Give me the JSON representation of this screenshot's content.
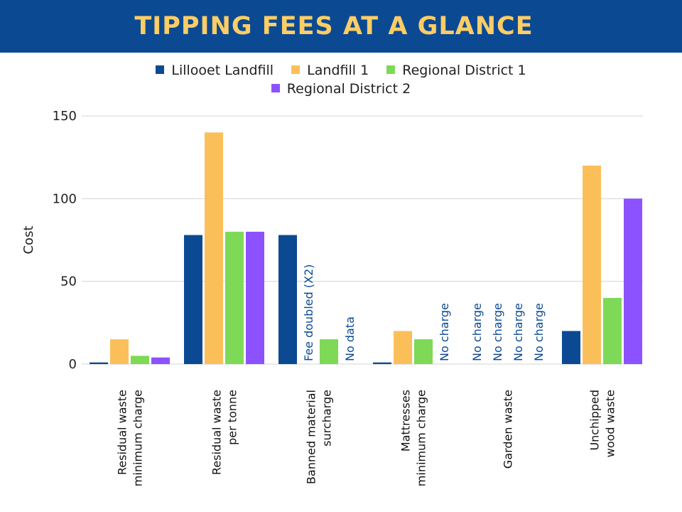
{
  "header": {
    "title": "TIPPING FEES AT A GLANCE"
  },
  "colors": {
    "header_bg": "#0b4a93",
    "title": "#fdcd66",
    "annotation": "#0b4a93"
  },
  "chart_data": {
    "type": "bar",
    "title": "",
    "xlabel": "",
    "ylabel": "Cost",
    "ylim": [
      0,
      150
    ],
    "yticks": [
      0,
      50,
      100,
      150
    ],
    "grid": true,
    "legend_position": "top",
    "categories": [
      [
        "Residual waste",
        "minimum charge"
      ],
      [
        "Residual waste",
        "per tonne"
      ],
      [
        "Banned material",
        "surcharge"
      ],
      [
        "Mattresses",
        "minimum charge"
      ],
      [
        "Garden waste"
      ],
      [
        "Unchipped",
        "wood waste"
      ]
    ],
    "series": [
      {
        "name": "Lillooet Landfill",
        "color": "#0b4a93",
        "values": [
          1,
          78,
          78,
          1,
          null,
          20
        ],
        "labels": [
          null,
          null,
          null,
          null,
          "No charge",
          null
        ]
      },
      {
        "name": "Landfill 1",
        "color": "#fbbf5a",
        "values": [
          15,
          140,
          null,
          20,
          null,
          120
        ],
        "labels": [
          null,
          null,
          "Fee doubled (X2)",
          null,
          "No charge",
          null
        ]
      },
      {
        "name": "Regional District 1",
        "color": "#7ed957",
        "values": [
          5,
          80,
          15,
          15,
          null,
          40
        ],
        "labels": [
          null,
          null,
          null,
          null,
          "No charge",
          null
        ]
      },
      {
        "name": "Regional District 2",
        "color": "#8c52ff",
        "values": [
          4,
          80,
          null,
          null,
          null,
          100
        ],
        "labels": [
          null,
          null,
          "No data",
          "No charge",
          "No charge",
          null
        ]
      }
    ]
  }
}
